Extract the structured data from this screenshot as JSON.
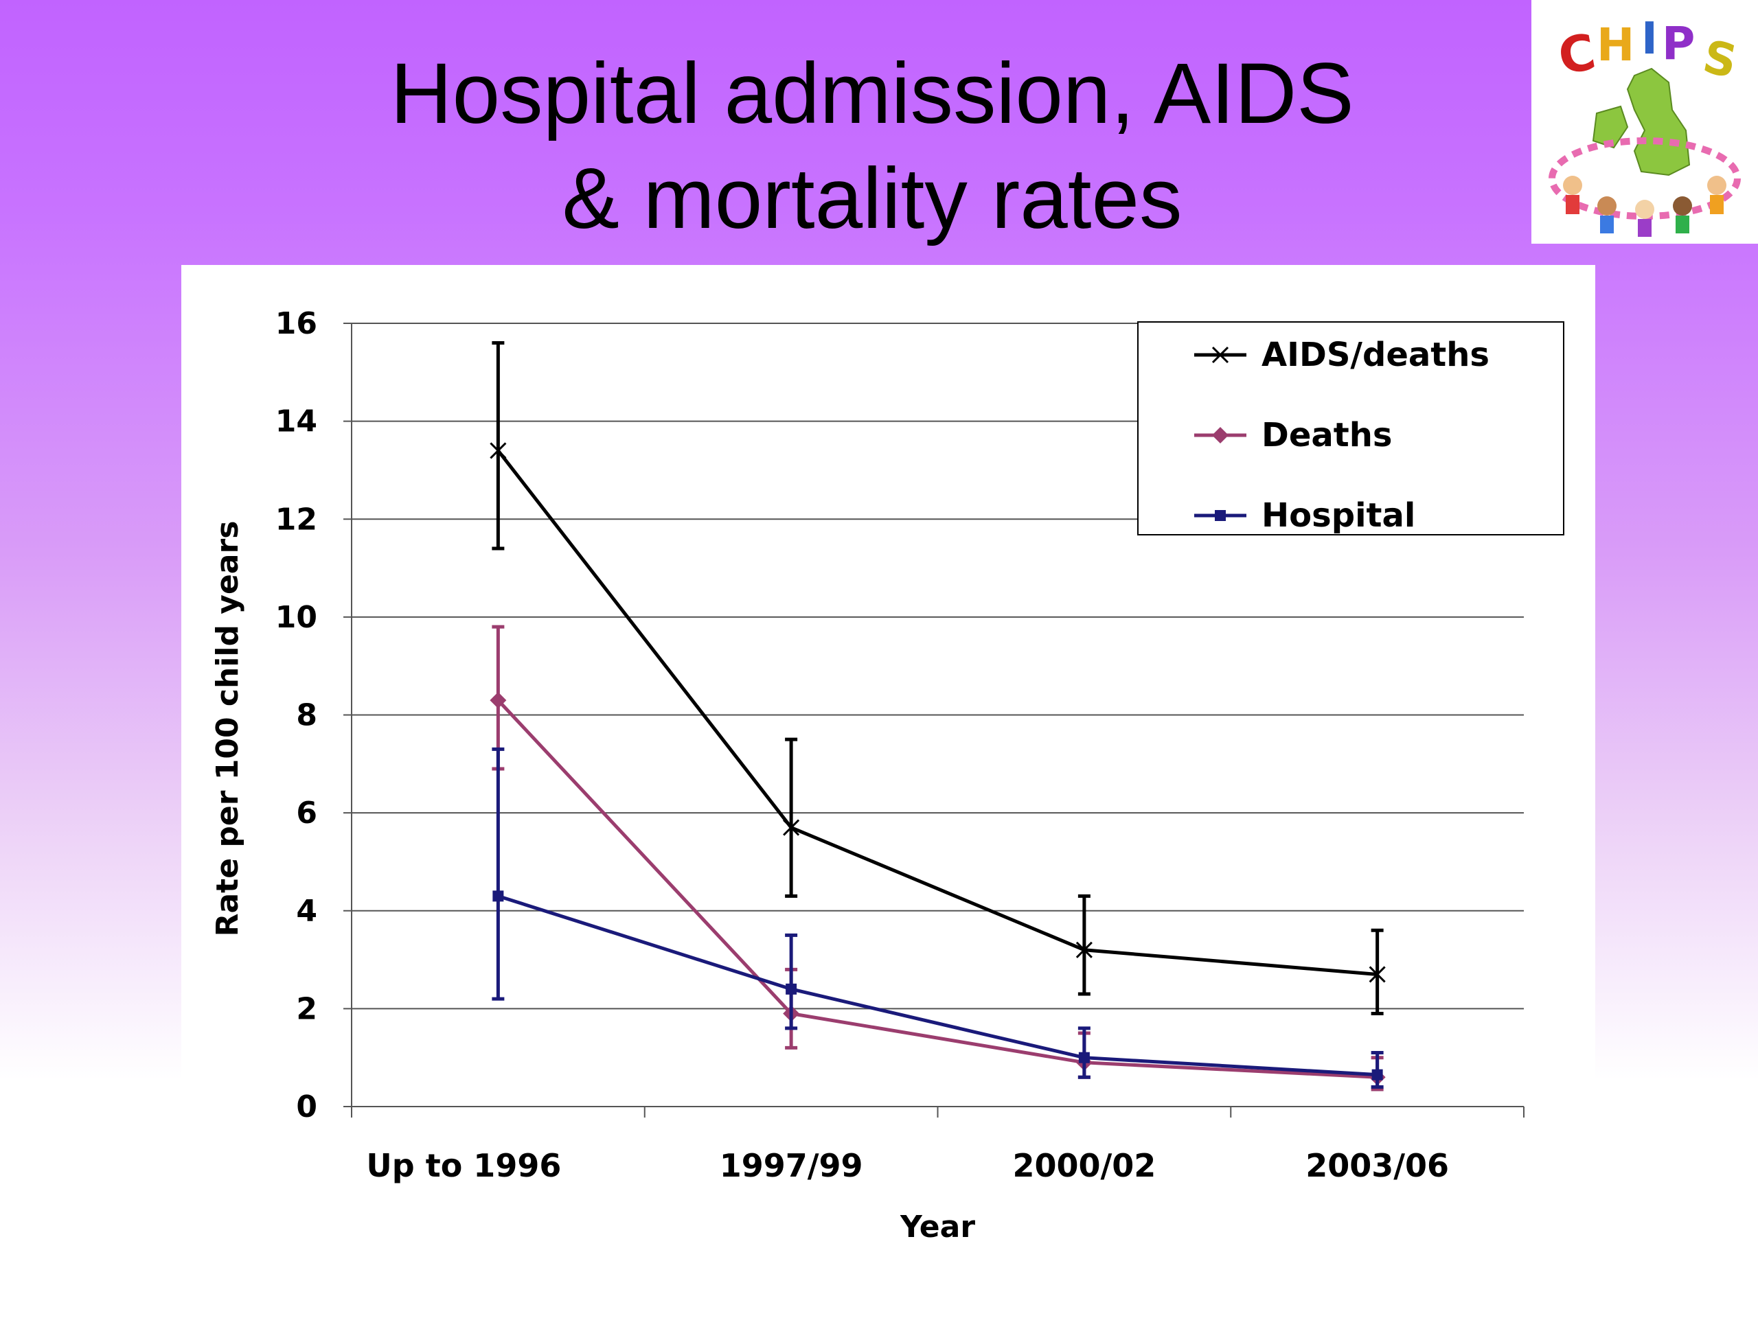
{
  "slide": {
    "title_line1": "Hospital admission, AIDS",
    "title_line2": "& mortality rates",
    "logo_text": "CHIPS"
  },
  "colors": {
    "aids_deaths": "#000000",
    "deaths": "#9b3d6e",
    "hospital": "#1a1a7a"
  },
  "chart_data": {
    "type": "line",
    "title": "",
    "xlabel": "Year",
    "ylabel": "Rate per 100 child years",
    "categories": [
      "Up to 1996",
      "1997/99",
      "2000/02",
      "2003/06"
    ],
    "ylim": [
      0,
      16
    ],
    "yticks": [
      0,
      2,
      4,
      6,
      8,
      10,
      12,
      14,
      16
    ],
    "grid": true,
    "legend_position": "top-right",
    "series": [
      {
        "name": "AIDS/deaths",
        "marker": "x",
        "color": "#000000",
        "values": [
          13.4,
          5.7,
          3.2,
          2.7
        ],
        "error_low": [
          11.4,
          4.3,
          2.3,
          1.9
        ],
        "error_high": [
          15.6,
          7.5,
          4.3,
          3.6
        ]
      },
      {
        "name": "Deaths",
        "marker": "diamond",
        "color": "#9b3d6e",
        "values": [
          8.3,
          1.9,
          0.9,
          0.6
        ],
        "error_low": [
          6.9,
          1.2,
          0.6,
          0.35
        ],
        "error_high": [
          9.8,
          2.8,
          1.5,
          1.0
        ]
      },
      {
        "name": "Hospital",
        "marker": "square",
        "color": "#1a1a7a",
        "values": [
          4.3,
          2.4,
          1.0,
          0.65
        ],
        "error_low": [
          2.2,
          1.6,
          0.6,
          0.4
        ],
        "error_high": [
          7.3,
          3.5,
          1.6,
          1.1
        ]
      }
    ]
  }
}
